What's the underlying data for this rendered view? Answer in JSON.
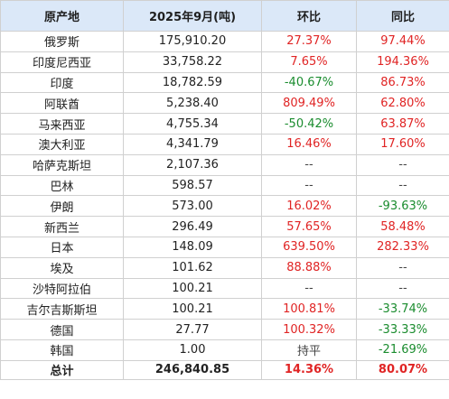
{
  "headers": [
    "原产地",
    "2025年9月(吨)",
    "环比",
    "同比"
  ],
  "rows": [
    {
      "origin": "俄罗斯",
      "tonnage": "175,910.20",
      "mom": "27.37%",
      "yoy": "97.44%"
    },
    {
      "origin": "印度尼西亚",
      "tonnage": "33,758.22",
      "mom": "7.65%",
      "yoy": "194.36%"
    },
    {
      "origin": "印度",
      "tonnage": "18,782.59",
      "mom": "-40.67%",
      "yoy": "86.73%"
    },
    {
      "origin": "阿联酋",
      "tonnage": "5,238.40",
      "mom": "809.49%",
      "yoy": "62.80%"
    },
    {
      "origin": "马来西亚",
      "tonnage": "4,755.34",
      "mom": "-50.42%",
      "yoy": "63.87%"
    },
    {
      "origin": "澳大利亚",
      "tonnage": "4,341.79",
      "mom": "16.46%",
      "yoy": "17.60%"
    },
    {
      "origin": "哈萨克斯坦",
      "tonnage": "2,107.36",
      "mom": "--",
      "yoy": "--"
    },
    {
      "origin": "巴林",
      "tonnage": "598.57",
      "mom": "--",
      "yoy": "--"
    },
    {
      "origin": "伊朗",
      "tonnage": "573.00",
      "mom": "16.02%",
      "yoy": "-93.63%"
    },
    {
      "origin": "新西兰",
      "tonnage": "296.49",
      "mom": "57.65%",
      "yoy": "58.48%"
    },
    {
      "origin": "日本",
      "tonnage": "148.09",
      "mom": "639.50%",
      "yoy": "282.33%"
    },
    {
      "origin": "埃及",
      "tonnage": "101.62",
      "mom": "88.88%",
      "yoy": "--"
    },
    {
      "origin": "沙特阿拉伯",
      "tonnage": "100.21",
      "mom": "--",
      "yoy": "--"
    },
    {
      "origin": "吉尔吉斯斯坦",
      "tonnage": "100.21",
      "mom": "100.81%",
      "yoy": "-33.74%"
    },
    {
      "origin": "德国",
      "tonnage": "27.77",
      "mom": "100.32%",
      "yoy": "-33.33%"
    },
    {
      "origin": "韩国",
      "tonnage": "1.00",
      "mom": "持平",
      "yoy": "-21.69%"
    }
  ],
  "total": {
    "origin": "总计",
    "tonnage": "246,840.85",
    "mom": "14.36%",
    "yoy": "80.07%"
  },
  "colors": {
    "header_bg": "#dbe8f8",
    "increase": "#e02424",
    "decrease": "#1a8c2e",
    "neutral": "#444444",
    "border": "#d0d0d0"
  }
}
